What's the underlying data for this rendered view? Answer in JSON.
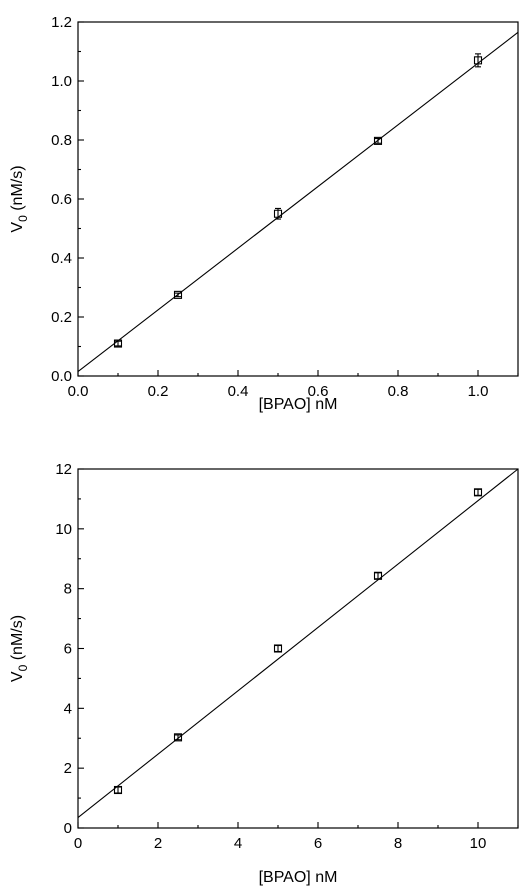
{
  "chart_data": [
    {
      "type": "scatter",
      "xlabel": "[BPAO] nM",
      "ylabel_main": "V",
      "ylabel_sub": "0",
      "ylabel_rest": " (nM/s)",
      "xlim": [
        0,
        1.1
      ],
      "ylim": [
        0,
        1.2
      ],
      "xticks": [
        "0.0",
        "0.2",
        "0.4",
        "0.6",
        "0.8",
        "1.0"
      ],
      "xtick_values": [
        0,
        0.2,
        0.4,
        0.6,
        0.8,
        1.0
      ],
      "yticks": [
        "0.0",
        "0.2",
        "0.4",
        "0.6",
        "0.8",
        "1.0",
        "1.2"
      ],
      "ytick_values": [
        0,
        0.2,
        0.4,
        0.6,
        0.8,
        1.0,
        1.2
      ],
      "points": [
        {
          "x": 0.1,
          "y": 0.11,
          "err": 0.008
        },
        {
          "x": 0.25,
          "y": 0.275,
          "err": 0.006
        },
        {
          "x": 0.5,
          "y": 0.55,
          "err": 0.018
        },
        {
          "x": 0.75,
          "y": 0.797,
          "err": 0.008
        },
        {
          "x": 1.0,
          "y": 1.07,
          "err": 0.022
        }
      ],
      "fit": {
        "x": [
          0,
          1.1
        ],
        "y": [
          0.015,
          1.165
        ]
      },
      "grid": false
    },
    {
      "type": "scatter",
      "xlabel": "[BPAO] nM",
      "ylabel_main": "V",
      "ylabel_sub": "0",
      "ylabel_rest": " (nM/s)",
      "xlim": [
        0,
        11
      ],
      "ylim": [
        0,
        12
      ],
      "xticks": [
        "0",
        "2",
        "4",
        "6",
        "8",
        "10"
      ],
      "xtick_values": [
        0,
        2,
        4,
        6,
        8,
        10
      ],
      "yticks": [
        "0",
        "2",
        "4",
        "6",
        "8",
        "10",
        "12"
      ],
      "ytick_values": [
        0,
        2,
        4,
        6,
        8,
        10,
        12
      ],
      "points": [
        {
          "x": 1,
          "y": 1.27,
          "err": 0.1
        },
        {
          "x": 2.5,
          "y": 3.03,
          "err": 0.08
        },
        {
          "x": 5,
          "y": 6.0,
          "err": 0.1
        },
        {
          "x": 7.5,
          "y": 8.43,
          "err": 0.1
        },
        {
          "x": 10,
          "y": 11.22,
          "err": 0.1
        }
      ],
      "fit": {
        "x": [
          0,
          11
        ],
        "y": [
          0.35,
          12.0
        ]
      },
      "grid": false
    }
  ]
}
